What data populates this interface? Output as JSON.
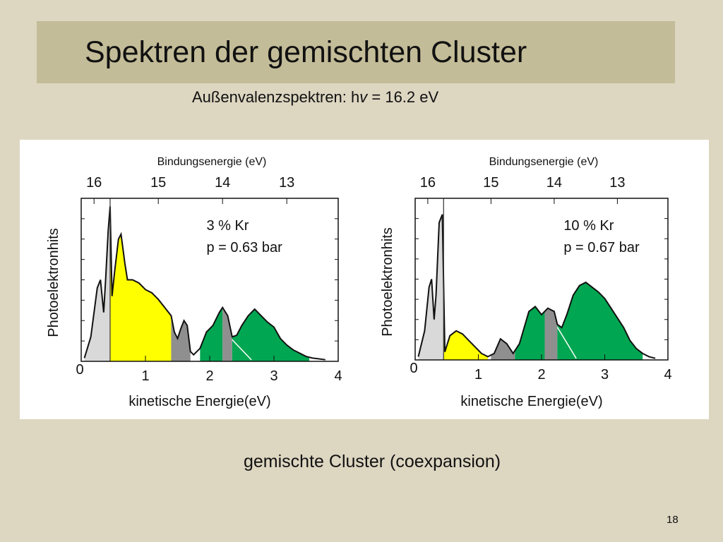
{
  "slide": {
    "title": "Spektren der gemischten Cluster",
    "subtitle_prefix": "Außenvalenzspektren: h",
    "subtitle_symbol": "v",
    "subtitle_suffix": " = 16.2 eV",
    "caption": "gemischte Cluster (coexpansion)",
    "page_number": "18"
  },
  "colors": {
    "background": "#ddd6c1",
    "title_bar": "#c3bc98",
    "light_gray": "#d9d9d9",
    "dark_gray": "#8f8f8f",
    "yellow": "#ffff00",
    "green": "#00a651"
  },
  "chart_data": [
    {
      "type": "area",
      "title": "",
      "xlabel": "kinetische Energie(eV)",
      "ylabel": "Photoelektronhits",
      "top_axis_label": "Bindungsenergie (eV)",
      "xlim": [
        0,
        4
      ],
      "x_ticks": [
        "0",
        "1",
        "2",
        "3",
        "4"
      ],
      "top_ticks": [
        {
          "label": "16",
          "ke": 0.2
        },
        {
          "label": "15",
          "ke": 1.2
        },
        {
          "label": "14",
          "ke": 2.2
        },
        {
          "label": "13",
          "ke": 3.2
        }
      ],
      "annotation": [
        "3 % Kr",
        "p = 0.63 bar"
      ],
      "cutoff_ke": 0.45,
      "spectrum": [
        [
          0.05,
          0.02
        ],
        [
          0.15,
          0.15
        ],
        [
          0.25,
          0.45
        ],
        [
          0.3,
          0.5
        ],
        [
          0.35,
          0.3
        ],
        [
          0.38,
          0.5
        ],
        [
          0.42,
          0.8
        ],
        [
          0.45,
          0.95
        ],
        [
          0.48,
          0.4
        ],
        [
          0.52,
          0.55
        ],
        [
          0.58,
          0.75
        ],
        [
          0.62,
          0.78
        ],
        [
          0.68,
          0.6
        ],
        [
          0.72,
          0.5
        ],
        [
          0.8,
          0.5
        ],
        [
          0.9,
          0.48
        ],
        [
          1.0,
          0.44
        ],
        [
          1.1,
          0.42
        ],
        [
          1.2,
          0.38
        ],
        [
          1.3,
          0.33
        ],
        [
          1.4,
          0.28
        ],
        [
          1.45,
          0.18
        ],
        [
          1.5,
          0.14
        ],
        [
          1.55,
          0.2
        ],
        [
          1.6,
          0.25
        ],
        [
          1.65,
          0.22
        ],
        [
          1.7,
          0.06
        ],
        [
          1.75,
          0.04
        ],
        [
          1.85,
          0.08
        ],
        [
          1.95,
          0.18
        ],
        [
          2.05,
          0.22
        ],
        [
          2.15,
          0.3
        ],
        [
          2.2,
          0.33
        ],
        [
          2.28,
          0.28
        ],
        [
          2.35,
          0.15
        ],
        [
          2.42,
          0.16
        ],
        [
          2.5,
          0.22
        ],
        [
          2.6,
          0.28
        ],
        [
          2.7,
          0.32
        ],
        [
          2.8,
          0.28
        ],
        [
          2.9,
          0.24
        ],
        [
          3.0,
          0.21
        ],
        [
          3.1,
          0.14
        ],
        [
          3.2,
          0.1
        ],
        [
          3.3,
          0.07
        ],
        [
          3.4,
          0.05
        ],
        [
          3.5,
          0.03
        ],
        [
          3.6,
          0.02
        ],
        [
          3.7,
          0.015
        ],
        [
          3.8,
          0.01
        ]
      ],
      "regions": [
        {
          "color": "light_gray",
          "from": 0.05,
          "to": 0.45
        },
        {
          "color": "yellow",
          "from": 0.45,
          "to": 1.4
        },
        {
          "color": "dark_gray",
          "from": 1.4,
          "to": 1.7
        },
        {
          "color": "green",
          "from": 1.85,
          "to": 2.2
        },
        {
          "color": "dark_gray",
          "from": 2.2,
          "to": 2.35
        },
        {
          "color": "green",
          "from": 2.35,
          "to": 3.55
        }
      ]
    },
    {
      "type": "area",
      "title": "",
      "xlabel": "kinetische Energie(eV)",
      "ylabel": "Photoelektronhits",
      "top_axis_label": "Bindungsenergie (eV)",
      "xlim": [
        0,
        4
      ],
      "x_ticks": [
        "0",
        "1",
        "2",
        "3",
        "4"
      ],
      "top_ticks": [
        {
          "label": "16",
          "ke": 0.2
        },
        {
          "label": "15",
          "ke": 1.2
        },
        {
          "label": "14",
          "ke": 2.2
        },
        {
          "label": "13",
          "ke": 3.2
        }
      ],
      "annotation": [
        "10 % Kr",
        "p = 0.67 bar"
      ],
      "cutoff_ke": 0.45,
      "spectrum": [
        [
          0.05,
          0.02
        ],
        [
          0.15,
          0.18
        ],
        [
          0.22,
          0.45
        ],
        [
          0.26,
          0.5
        ],
        [
          0.3,
          0.25
        ],
        [
          0.33,
          0.4
        ],
        [
          0.38,
          0.85
        ],
        [
          0.43,
          0.9
        ],
        [
          0.47,
          0.05
        ],
        [
          0.55,
          0.15
        ],
        [
          0.65,
          0.18
        ],
        [
          0.75,
          0.16
        ],
        [
          0.85,
          0.12
        ],
        [
          0.95,
          0.08
        ],
        [
          1.05,
          0.04
        ],
        [
          1.15,
          0.02
        ],
        [
          1.25,
          0.04
        ],
        [
          1.35,
          0.13
        ],
        [
          1.45,
          0.1
        ],
        [
          1.55,
          0.04
        ],
        [
          1.65,
          0.1
        ],
        [
          1.8,
          0.3
        ],
        [
          1.9,
          0.33
        ],
        [
          2.0,
          0.28
        ],
        [
          2.1,
          0.32
        ],
        [
          2.2,
          0.3
        ],
        [
          2.25,
          0.22
        ],
        [
          2.32,
          0.2
        ],
        [
          2.4,
          0.28
        ],
        [
          2.5,
          0.4
        ],
        [
          2.6,
          0.46
        ],
        [
          2.7,
          0.48
        ],
        [
          2.8,
          0.45
        ],
        [
          2.9,
          0.42
        ],
        [
          3.0,
          0.38
        ],
        [
          3.1,
          0.32
        ],
        [
          3.2,
          0.26
        ],
        [
          3.3,
          0.2
        ],
        [
          3.4,
          0.12
        ],
        [
          3.5,
          0.07
        ],
        [
          3.6,
          0.04
        ],
        [
          3.7,
          0.02
        ],
        [
          3.8,
          0.01
        ]
      ],
      "regions": [
        {
          "color": "light_gray",
          "from": 0.05,
          "to": 0.45
        },
        {
          "color": "yellow",
          "from": 0.45,
          "to": 1.15
        },
        {
          "color": "dark_gray",
          "from": 1.2,
          "to": 1.58
        },
        {
          "color": "green",
          "from": 1.58,
          "to": 2.05
        },
        {
          "color": "dark_gray",
          "from": 2.05,
          "to": 2.25
        },
        {
          "color": "green",
          "from": 2.25,
          "to": 3.6
        }
      ]
    }
  ]
}
